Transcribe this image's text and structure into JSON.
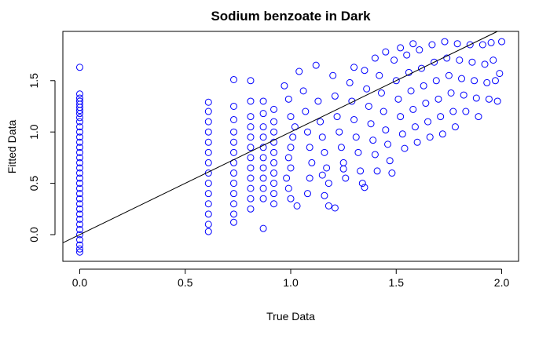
{
  "chart_data": {
    "type": "scatter",
    "title": "Sodium benzoate in Dark",
    "xlabel": "True Data",
    "ylabel": "Fitted Data",
    "xlim": [
      -0.08,
      2.08
    ],
    "ylim": [
      -0.26,
      1.98
    ],
    "x_ticks": [
      0.0,
      0.5,
      1.0,
      1.5,
      2.0
    ],
    "x_tick_labels": [
      "0.0",
      "0.5",
      "1.0",
      "1.5",
      "2.0"
    ],
    "y_ticks": [
      0.0,
      0.5,
      1.0,
      1.5
    ],
    "y_tick_labels": [
      "0.0",
      "0.5",
      "1.0",
      "1.5"
    ],
    "grid": false,
    "legend": "none",
    "point_color": "#0000ff",
    "fit_line": {
      "slope": 1.0,
      "intercept": 0.0,
      "color": "#000000"
    },
    "series": [
      {
        "points": [
          [
            0,
            1.63
          ],
          [
            0,
            1.37
          ],
          [
            0,
            1.33
          ],
          [
            0,
            1.3
          ],
          [
            0,
            1.27
          ],
          [
            0,
            1.24
          ],
          [
            0,
            1.21
          ],
          [
            0,
            1.18
          ],
          [
            0,
            1.14
          ],
          [
            0,
            1.1
          ],
          [
            0,
            1.05
          ],
          [
            0,
            1.0
          ],
          [
            0,
            0.95
          ],
          [
            0,
            0.9
          ],
          [
            0,
            0.85
          ],
          [
            0,
            0.8
          ],
          [
            0,
            0.75
          ],
          [
            0,
            0.7
          ],
          [
            0,
            0.65
          ],
          [
            0,
            0.6
          ],
          [
            0,
            0.55
          ],
          [
            0,
            0.5
          ],
          [
            0,
            0.45
          ],
          [
            0,
            0.4
          ],
          [
            0,
            0.35
          ],
          [
            0,
            0.3
          ],
          [
            0,
            0.25
          ],
          [
            0,
            0.2
          ],
          [
            0,
            0.15
          ],
          [
            0,
            0.1
          ],
          [
            0,
            0.05
          ],
          [
            0,
            0.0
          ],
          [
            0,
            -0.05
          ],
          [
            0,
            -0.1
          ],
          [
            0,
            -0.14
          ],
          [
            0,
            -0.17
          ],
          [
            0.61,
            1.29
          ],
          [
            0.61,
            1.2
          ],
          [
            0.61,
            1.1
          ],
          [
            0.61,
            1.0
          ],
          [
            0.61,
            0.9
          ],
          [
            0.61,
            0.8
          ],
          [
            0.61,
            0.7
          ],
          [
            0.61,
            0.6
          ],
          [
            0.61,
            0.5
          ],
          [
            0.61,
            0.4
          ],
          [
            0.61,
            0.3
          ],
          [
            0.61,
            0.2
          ],
          [
            0.61,
            0.1
          ],
          [
            0.61,
            0.03
          ],
          [
            0.73,
            1.51
          ],
          [
            0.73,
            1.25
          ],
          [
            0.73,
            1.12
          ],
          [
            0.73,
            1.0
          ],
          [
            0.73,
            0.9
          ],
          [
            0.73,
            0.8
          ],
          [
            0.73,
            0.7
          ],
          [
            0.73,
            0.6
          ],
          [
            0.73,
            0.5
          ],
          [
            0.73,
            0.4
          ],
          [
            0.73,
            0.3
          ],
          [
            0.73,
            0.2
          ],
          [
            0.73,
            0.12
          ],
          [
            0.81,
            1.5
          ],
          [
            0.81,
            1.3
          ],
          [
            0.81,
            1.15
          ],
          [
            0.81,
            1.05
          ],
          [
            0.81,
            0.95
          ],
          [
            0.81,
            0.85
          ],
          [
            0.81,
            0.75
          ],
          [
            0.81,
            0.65
          ],
          [
            0.81,
            0.55
          ],
          [
            0.81,
            0.45
          ],
          [
            0.81,
            0.35
          ],
          [
            0.81,
            0.25
          ],
          [
            0.87,
            1.3
          ],
          [
            0.87,
            1.18
          ],
          [
            0.87,
            1.05
          ],
          [
            0.87,
            0.95
          ],
          [
            0.87,
            0.85
          ],
          [
            0.87,
            0.75
          ],
          [
            0.87,
            0.65
          ],
          [
            0.87,
            0.55
          ],
          [
            0.87,
            0.45
          ],
          [
            0.87,
            0.35
          ],
          [
            0.87,
            0.06
          ],
          [
            0.92,
            1.22
          ],
          [
            0.92,
            1.1
          ],
          [
            0.92,
            1.0
          ],
          [
            0.92,
            0.9
          ],
          [
            0.92,
            0.8
          ],
          [
            0.92,
            0.7
          ],
          [
            0.92,
            0.6
          ],
          [
            0.92,
            0.5
          ],
          [
            0.92,
            0.4
          ],
          [
            0.92,
            0.3
          ],
          [
            0.97,
            1.45
          ],
          [
            0.99,
            1.32
          ],
          [
            1.0,
            1.15
          ],
          [
            1.02,
            1.05
          ],
          [
            1.01,
            0.95
          ],
          [
            1.0,
            0.85
          ],
          [
            0.99,
            0.75
          ],
          [
            1.0,
            0.65
          ],
          [
            0.98,
            0.55
          ],
          [
            0.99,
            0.45
          ],
          [
            1.0,
            0.35
          ],
          [
            1.03,
            0.28
          ],
          [
            1.04,
            1.59
          ],
          [
            1.06,
            1.4
          ],
          [
            1.07,
            1.2
          ],
          [
            1.08,
            1.0
          ],
          [
            1.09,
            0.85
          ],
          [
            1.1,
            0.7
          ],
          [
            1.09,
            0.55
          ],
          [
            1.08,
            0.4
          ],
          [
            1.12,
            1.65
          ],
          [
            1.13,
            1.3
          ],
          [
            1.14,
            1.1
          ],
          [
            1.15,
            0.95
          ],
          [
            1.16,
            0.8
          ],
          [
            1.17,
            0.65
          ],
          [
            1.18,
            0.5
          ],
          [
            1.16,
            0.38
          ],
          [
            1.18,
            0.28
          ],
          [
            1.2,
            1.55
          ],
          [
            1.21,
            1.35
          ],
          [
            1.22,
            1.15
          ],
          [
            1.23,
            1.0
          ],
          [
            1.24,
            0.85
          ],
          [
            1.25,
            0.7
          ],
          [
            1.26,
            0.55
          ],
          [
            1.21,
            0.26
          ],
          [
            1.28,
            1.48
          ],
          [
            1.29,
            1.3
          ],
          [
            1.3,
            1.12
          ],
          [
            1.31,
            0.95
          ],
          [
            1.32,
            0.8
          ],
          [
            1.33,
            0.62
          ],
          [
            1.34,
            0.5
          ],
          [
            1.35,
            1.6
          ],
          [
            1.36,
            1.42
          ],
          [
            1.37,
            1.25
          ],
          [
            1.38,
            1.08
          ],
          [
            1.39,
            0.92
          ],
          [
            1.4,
            0.78
          ],
          [
            1.41,
            0.62
          ],
          [
            1.42,
            1.55
          ],
          [
            1.43,
            1.38
          ],
          [
            1.44,
            1.2
          ],
          [
            1.45,
            1.02
          ],
          [
            1.46,
            0.88
          ],
          [
            1.47,
            0.72
          ],
          [
            1.48,
            0.6
          ],
          [
            1.49,
            1.7
          ],
          [
            1.5,
            1.5
          ],
          [
            1.51,
            1.32
          ],
          [
            1.52,
            1.15
          ],
          [
            1.53,
            0.98
          ],
          [
            1.54,
            0.84
          ],
          [
            1.55,
            1.75
          ],
          [
            1.56,
            1.58
          ],
          [
            1.57,
            1.4
          ],
          [
            1.58,
            1.22
          ],
          [
            1.59,
            1.05
          ],
          [
            1.6,
            0.9
          ],
          [
            1.61,
            1.8
          ],
          [
            1.62,
            1.62
          ],
          [
            1.63,
            1.45
          ],
          [
            1.64,
            1.28
          ],
          [
            1.65,
            1.1
          ],
          [
            1.66,
            0.95
          ],
          [
            1.67,
            1.85
          ],
          [
            1.68,
            1.68
          ],
          [
            1.69,
            1.5
          ],
          [
            1.7,
            1.32
          ],
          [
            1.71,
            1.15
          ],
          [
            1.72,
            0.98
          ],
          [
            1.73,
            1.88
          ],
          [
            1.74,
            1.72
          ],
          [
            1.75,
            1.55
          ],
          [
            1.76,
            1.38
          ],
          [
            1.77,
            1.2
          ],
          [
            1.78,
            1.05
          ],
          [
            1.79,
            1.86
          ],
          [
            1.8,
            1.7
          ],
          [
            1.81,
            1.52
          ],
          [
            1.82,
            1.36
          ],
          [
            1.83,
            1.2
          ],
          [
            1.85,
            1.85
          ],
          [
            1.86,
            1.68
          ],
          [
            1.87,
            1.5
          ],
          [
            1.88,
            1.33
          ],
          [
            1.89,
            1.15
          ],
          [
            1.91,
            1.85
          ],
          [
            1.92,
            1.66
          ],
          [
            1.93,
            1.48
          ],
          [
            1.94,
            1.32
          ],
          [
            1.95,
            1.87
          ],
          [
            1.96,
            1.7
          ],
          [
            1.97,
            1.5
          ],
          [
            1.98,
            1.3
          ],
          [
            2.0,
            1.88
          ],
          [
            1.99,
            1.57
          ],
          [
            1.3,
            1.63
          ],
          [
            1.4,
            1.72
          ],
          [
            1.45,
            1.78
          ],
          [
            1.52,
            1.82
          ],
          [
            1.58,
            1.86
          ],
          [
            1.35,
            0.46
          ],
          [
            1.15,
            0.58
          ],
          [
            1.25,
            0.64
          ]
        ]
      }
    ]
  }
}
